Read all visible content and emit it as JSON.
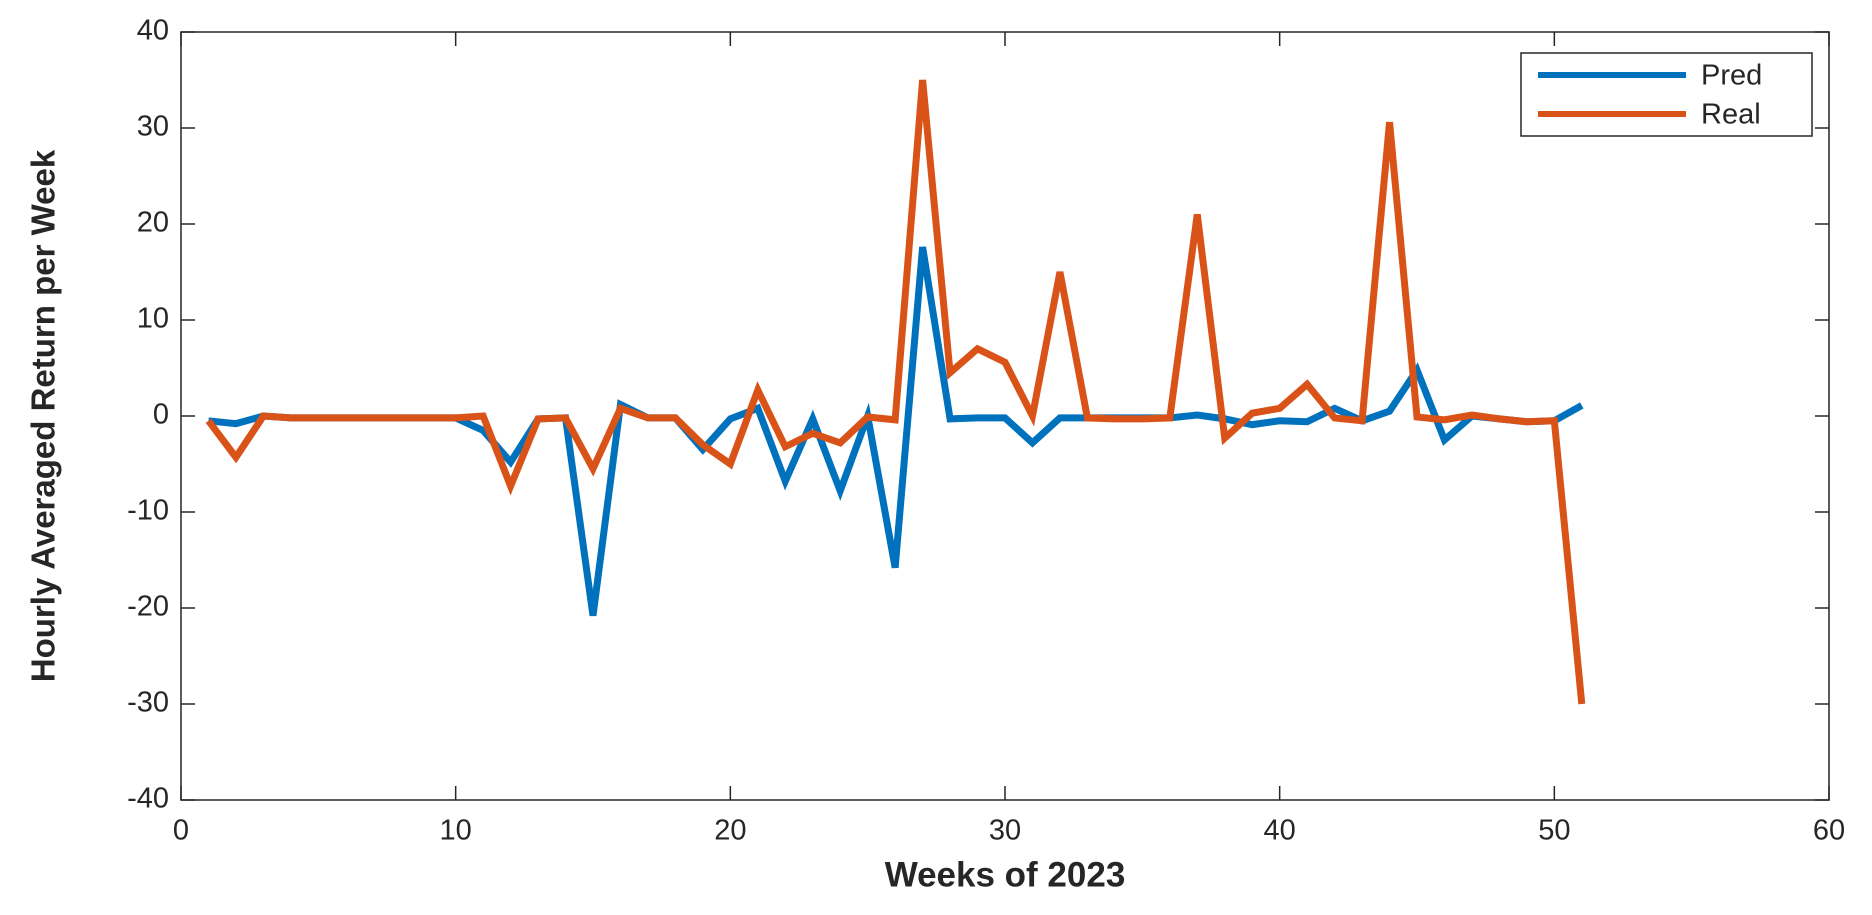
{
  "chart_data": {
    "type": "line",
    "xlabel": "Weeks of 2023",
    "ylabel": "Hourly Averaged Return per Week",
    "x": [
      1,
      2,
      3,
      4,
      5,
      6,
      7,
      8,
      9,
      10,
      11,
      12,
      13,
      14,
      15,
      16,
      17,
      18,
      19,
      20,
      21,
      22,
      23,
      24,
      25,
      26,
      27,
      28,
      29,
      30,
      31,
      32,
      33,
      34,
      35,
      36,
      37,
      38,
      39,
      40,
      41,
      42,
      43,
      44,
      45,
      46,
      47,
      48,
      49,
      50,
      51
    ],
    "series": [
      {
        "name": "Pred",
        "color": "#0072bd",
        "values": [
          -0.5,
          -0.8,
          0,
          -0.2,
          -0.2,
          -0.2,
          -0.2,
          -0.2,
          -0.2,
          -0.2,
          -1.5,
          -4.8,
          -0.3,
          -0.2,
          -20.8,
          1.2,
          -0.2,
          -0.2,
          -3.5,
          -0.3,
          0.8,
          -6.8,
          -0.3,
          -7.8,
          0,
          -15.8,
          17.6,
          -0.3,
          -0.2,
          -0.2,
          -2.8,
          -0.2,
          -0.2,
          -0.2,
          -0.2,
          -0.2,
          0.1,
          -0.3,
          -0.9,
          -0.5,
          -0.6,
          0.8,
          -0.5,
          0.5,
          4.8,
          -2.5,
          0,
          -0.3,
          -0.6,
          -0.5,
          1.1
        ]
      },
      {
        "name": "Real",
        "color": "#d95319",
        "values": [
          -0.5,
          -4.3,
          0,
          -0.2,
          -0.2,
          -0.2,
          -0.2,
          -0.2,
          -0.2,
          -0.2,
          0,
          -7.3,
          -0.3,
          -0.2,
          -5.5,
          0.8,
          -0.2,
          -0.2,
          -3,
          -5,
          2.7,
          -3.2,
          -1.8,
          -2.8,
          -0.1,
          -0.4,
          35,
          4.5,
          7,
          5.6,
          0,
          15,
          -0.2,
          -0.3,
          -0.3,
          -0.2,
          21,
          -2.3,
          0.3,
          0.8,
          3.3,
          -0.2,
          -0.5,
          30.6,
          -0.1,
          -0.4,
          0.1,
          -0.3,
          -0.6,
          -0.5,
          -30
        ]
      }
    ],
    "xlim": [
      0,
      60
    ],
    "xticks": [
      0,
      10,
      20,
      30,
      40,
      50,
      60
    ],
    "ylim": [
      -40,
      40
    ],
    "yticks": [
      -40,
      -30,
      -20,
      -10,
      0,
      10,
      20,
      30,
      40
    ],
    "legend": "upper right",
    "grid": false
  }
}
